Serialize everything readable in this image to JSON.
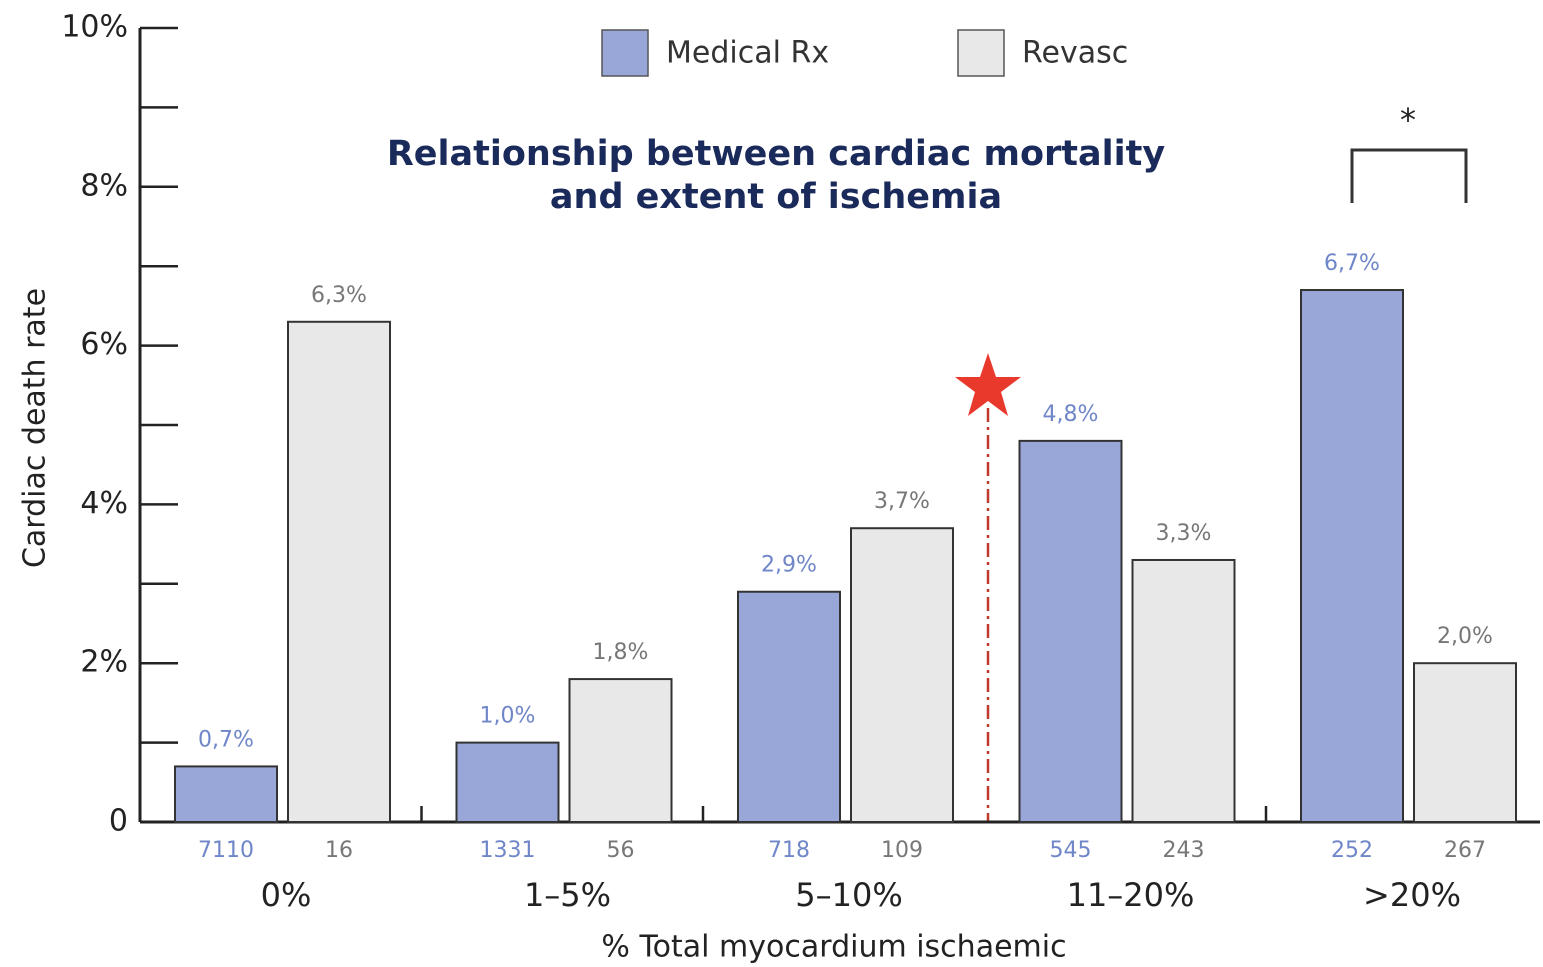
{
  "chart_data": {
    "type": "bar",
    "title": [
      "Relationship between cardiac mortality",
      "and extent of ischemia"
    ],
    "xlabel": "% Total myocardium ischaemic",
    "ylabel": "Cardiac death rate",
    "categories": [
      "0%",
      "1–5%",
      "5–10%",
      "11–20%",
      ">20%"
    ],
    "series": [
      {
        "name": "Medical Rx",
        "color": "#98a7d8",
        "label_color": "#6f86c9",
        "values": [
          0.7,
          1.0,
          2.9,
          4.8,
          6.7
        ],
        "value_labels": [
          "0,7%",
          "1,0%",
          "2,9%",
          "4,8%",
          "6,7%"
        ],
        "n": [
          7110,
          1331,
          718,
          545,
          252
        ]
      },
      {
        "name": "Revasc",
        "color": "#e8e8e8",
        "label_color": "#777777",
        "values": [
          6.3,
          1.8,
          3.7,
          3.3,
          2.0
        ],
        "value_labels": [
          "6,3%",
          "1,8%",
          "3,7%",
          "3,3%",
          "2,0%"
        ],
        "n": [
          16,
          56,
          109,
          243,
          267
        ]
      }
    ],
    "ylim": [
      0,
      10
    ],
    "yticks": [
      0,
      {
        "value": 2,
        "label": "2%"
      },
      {
        "value": 4,
        "label": "4%"
      },
      {
        "value": 6,
        "label": "6%"
      },
      {
        "value": 8,
        "label": "8%"
      },
      {
        "value": 10,
        "label": "10%"
      }
    ],
    "minor_yticks": [
      1,
      3,
      5,
      7,
      9
    ],
    "legend": "top",
    "annotation": "*"
  }
}
